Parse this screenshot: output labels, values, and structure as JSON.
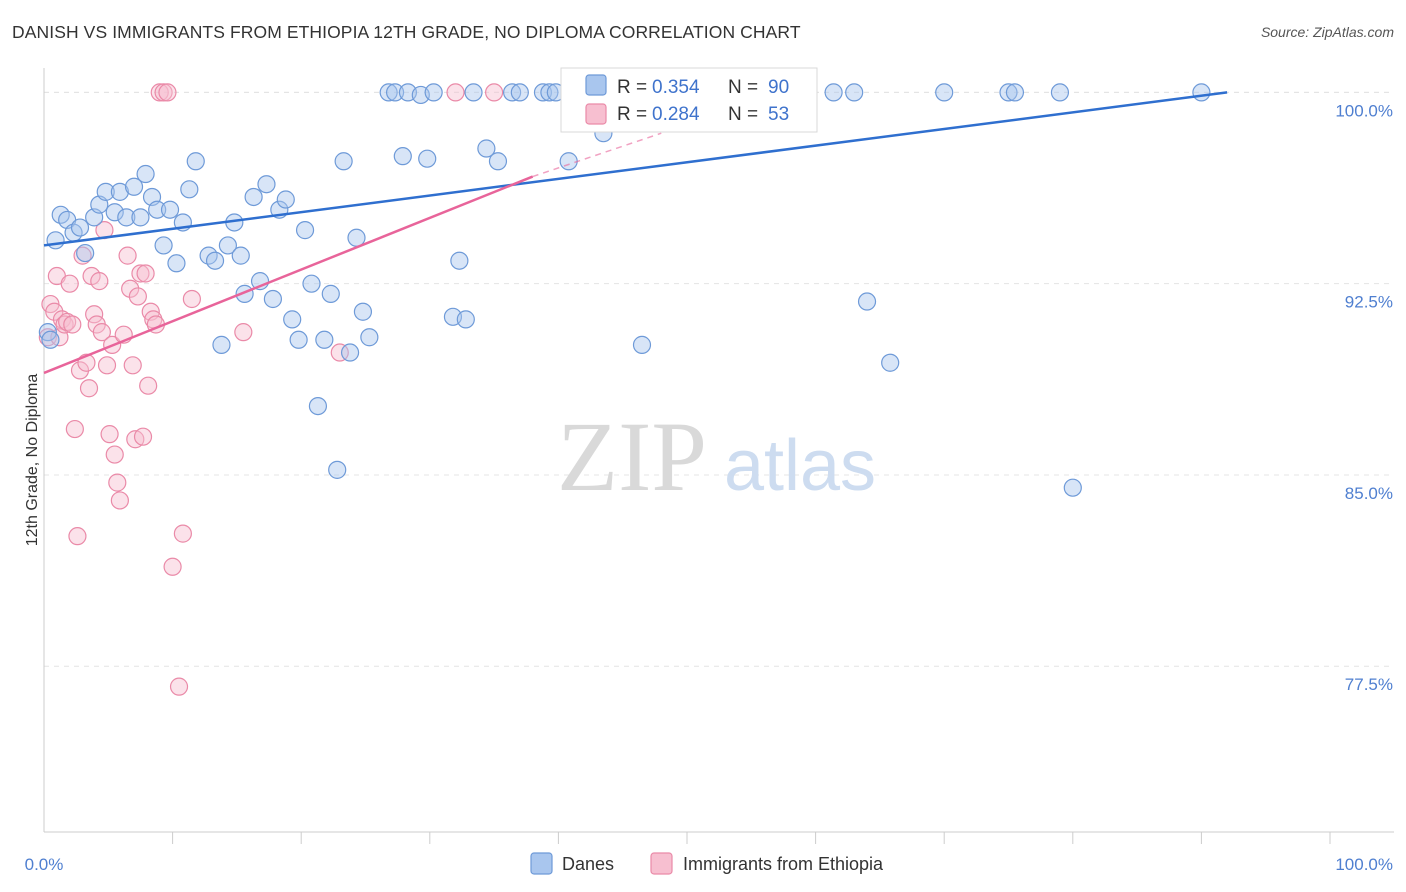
{
  "title": "DANISH VS IMMIGRANTS FROM ETHIOPIA 12TH GRADE, NO DIPLOMA CORRELATION CHART",
  "source": "Source: ZipAtlas.com",
  "watermark": {
    "zip": "ZIP",
    "atlas": "atlas"
  },
  "colors": {
    "danes_fill": "#a9c6ee",
    "danes_stroke": "#6e9ad8",
    "danes_line": "#2f6fcf",
    "eth_fill": "#f7bfd0",
    "eth_stroke": "#ea8aa8",
    "eth_line": "#e8649a",
    "grid": "#e4e4e4",
    "tick_label": "#4f7fd0"
  },
  "legend": {
    "rows": [
      {
        "r_label": "R = ",
        "r_value": "0.354",
        "n_label": "N = ",
        "n_value": "90"
      },
      {
        "r_label": "R = ",
        "r_value": "0.284",
        "n_label": "N = ",
        "n_value": "53"
      }
    ]
  },
  "bottom_legend": [
    "Danes",
    "Immigrants from Ethiopia"
  ],
  "chart_data": {
    "type": "scatter",
    "title": "DANISH VS IMMIGRANTS FROM ETHIOPIA 12TH GRADE, NO DIPLOMA CORRELATION CHART",
    "xlabel": "",
    "ylabel": "12th Grade, No Diploma",
    "xlim": [
      0,
      100
    ],
    "ylim": [
      71.0,
      100.8
    ],
    "x_tick_labels": [
      {
        "value": 0,
        "label": "0.0%"
      },
      {
        "value": 100,
        "label": "100.0%"
      }
    ],
    "x_minor_ticks": [
      10,
      20,
      30,
      40,
      50,
      60,
      70,
      80,
      90,
      100
    ],
    "y_ticks": [
      {
        "value": 100.0,
        "label": "100.0%"
      },
      {
        "value": 92.5,
        "label": "92.5%"
      },
      {
        "value": 85.0,
        "label": "85.0%"
      },
      {
        "value": 77.5,
        "label": "77.5%"
      }
    ],
    "grid": true,
    "legend_position": "top-center",
    "series": [
      {
        "name": "Danes",
        "trend": {
          "x": [
            0,
            92
          ],
          "y": [
            94.0,
            100.0
          ]
        },
        "points": [
          [
            0.3,
            90.6
          ],
          [
            0.5,
            90.3
          ],
          [
            0.9,
            94.2
          ],
          [
            1.3,
            95.2
          ],
          [
            1.8,
            95.0
          ],
          [
            2.3,
            94.5
          ],
          [
            2.8,
            94.7
          ],
          [
            3.2,
            93.7
          ],
          [
            3.9,
            95.1
          ],
          [
            4.3,
            95.6
          ],
          [
            4.8,
            96.1
          ],
          [
            5.5,
            95.3
          ],
          [
            5.9,
            96.1
          ],
          [
            6.4,
            95.1
          ],
          [
            7.0,
            96.3
          ],
          [
            7.5,
            95.1
          ],
          [
            7.9,
            96.8
          ],
          [
            8.4,
            95.9
          ],
          [
            8.8,
            95.4
          ],
          [
            9.3,
            94.0
          ],
          [
            9.8,
            95.4
          ],
          [
            10.3,
            93.3
          ],
          [
            10.8,
            94.9
          ],
          [
            11.3,
            96.2
          ],
          [
            11.8,
            97.3
          ],
          [
            12.8,
            93.6
          ],
          [
            13.3,
            93.4
          ],
          [
            13.8,
            90.1
          ],
          [
            14.3,
            94.0
          ],
          [
            14.8,
            94.9
          ],
          [
            15.3,
            93.6
          ],
          [
            15.6,
            92.1
          ],
          [
            16.3,
            95.9
          ],
          [
            16.8,
            92.6
          ],
          [
            17.3,
            96.4
          ],
          [
            17.8,
            91.9
          ],
          [
            18.3,
            95.4
          ],
          [
            18.8,
            95.8
          ],
          [
            19.3,
            91.1
          ],
          [
            19.8,
            90.3
          ],
          [
            20.3,
            94.6
          ],
          [
            20.8,
            92.5
          ],
          [
            21.3,
            87.7
          ],
          [
            21.8,
            90.3
          ],
          [
            22.3,
            92.1
          ],
          [
            22.8,
            85.2
          ],
          [
            23.3,
            97.3
          ],
          [
            23.8,
            89.8
          ],
          [
            24.3,
            94.3
          ],
          [
            24.8,
            91.4
          ],
          [
            25.3,
            90.4
          ],
          [
            26.8,
            100.0
          ],
          [
            27.3,
            100.0
          ],
          [
            27.9,
            97.5
          ],
          [
            28.3,
            100.0
          ],
          [
            29.3,
            99.9
          ],
          [
            29.8,
            97.4
          ],
          [
            30.3,
            100.0
          ],
          [
            31.8,
            91.2
          ],
          [
            32.3,
            93.4
          ],
          [
            32.8,
            91.1
          ],
          [
            33.4,
            100.0
          ],
          [
            34.4,
            97.8
          ],
          [
            35.3,
            97.3
          ],
          [
            36.4,
            100.0
          ],
          [
            37.0,
            100.0
          ],
          [
            38.8,
            100.0
          ],
          [
            39.3,
            100.0
          ],
          [
            39.8,
            100.0
          ],
          [
            40.8,
            97.3
          ],
          [
            41.8,
            100.0
          ],
          [
            43.5,
            98.4
          ],
          [
            45.0,
            100.0
          ],
          [
            45.8,
            100.0
          ],
          [
            46.5,
            90.1
          ],
          [
            47.4,
            100.0
          ],
          [
            47.9,
            100.0
          ],
          [
            51.8,
            100.0
          ],
          [
            55.0,
            100.0
          ],
          [
            59.0,
            100.0
          ],
          [
            61.4,
            100.0
          ],
          [
            63.0,
            100.0
          ],
          [
            64.0,
            91.8
          ],
          [
            65.8,
            89.4
          ],
          [
            70.0,
            100.0
          ],
          [
            75.0,
            100.0
          ],
          [
            75.5,
            100.0
          ],
          [
            79.0,
            100.0
          ],
          [
            80.0,
            84.5
          ],
          [
            90.0,
            100.0
          ]
        ]
      },
      {
        "name": "Immigrants from Ethiopia",
        "trend": {
          "x": [
            0,
            38
          ],
          "y": [
            89.0,
            96.7
          ]
        },
        "trend_dashed": {
          "x": [
            38,
            48
          ],
          "y": [
            96.7,
            98.4
          ]
        },
        "points": [
          [
            0.3,
            90.4
          ],
          [
            0.5,
            91.7
          ],
          [
            0.8,
            91.4
          ],
          [
            1.0,
            92.8
          ],
          [
            1.2,
            90.4
          ],
          [
            1.4,
            91.1
          ],
          [
            1.6,
            90.9
          ],
          [
            1.8,
            91.0
          ],
          [
            2.0,
            92.5
          ],
          [
            2.2,
            90.9
          ],
          [
            2.4,
            86.8
          ],
          [
            2.6,
            82.6
          ],
          [
            2.8,
            89.1
          ],
          [
            3.0,
            93.6
          ],
          [
            3.3,
            89.4
          ],
          [
            3.5,
            88.4
          ],
          [
            3.7,
            92.8
          ],
          [
            3.9,
            91.3
          ],
          [
            4.1,
            90.9
          ],
          [
            4.3,
            92.6
          ],
          [
            4.5,
            90.6
          ],
          [
            4.7,
            94.6
          ],
          [
            4.9,
            89.3
          ],
          [
            5.1,
            86.6
          ],
          [
            5.3,
            90.1
          ],
          [
            5.5,
            85.8
          ],
          [
            5.7,
            84.7
          ],
          [
            5.9,
            84.0
          ],
          [
            6.2,
            90.5
          ],
          [
            6.5,
            93.6
          ],
          [
            6.7,
            92.3
          ],
          [
            6.9,
            89.3
          ],
          [
            7.1,
            86.4
          ],
          [
            7.3,
            92.0
          ],
          [
            7.5,
            92.9
          ],
          [
            7.7,
            86.5
          ],
          [
            7.9,
            92.9
          ],
          [
            8.1,
            88.5
          ],
          [
            8.3,
            91.4
          ],
          [
            8.5,
            91.1
          ],
          [
            8.7,
            90.9
          ],
          [
            9.0,
            100.0
          ],
          [
            9.3,
            100.0
          ],
          [
            9.6,
            100.0
          ],
          [
            10.0,
            81.4
          ],
          [
            10.5,
            76.7
          ],
          [
            10.8,
            82.7
          ],
          [
            11.5,
            91.9
          ],
          [
            15.5,
            90.6
          ],
          [
            23.0,
            89.8
          ],
          [
            32.0,
            100.0
          ],
          [
            35.0,
            100.0
          ],
          [
            51.0,
            100.0
          ]
        ]
      }
    ]
  }
}
